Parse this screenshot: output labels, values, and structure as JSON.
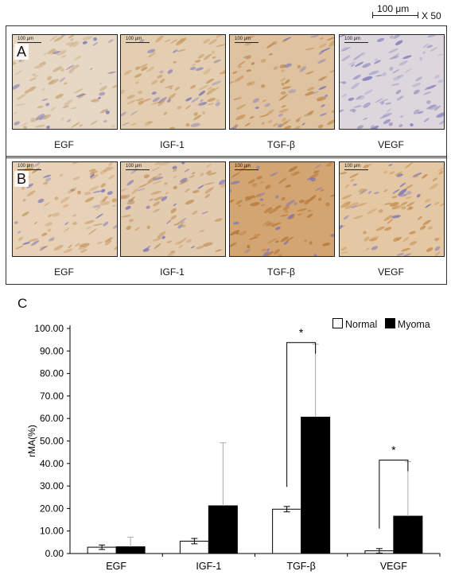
{
  "scale_bar": {
    "label": "100 μm",
    "magnification": "X 50"
  },
  "tile_scale_label": "100 μm",
  "panels": [
    {
      "letter": "A",
      "tiles": [
        {
          "label": "EGF",
          "stain": "#caa87e",
          "base": "#e6d8c4"
        },
        {
          "label": "IGF-1",
          "stain": "#c79a62",
          "base": "#e4ceb2"
        },
        {
          "label": "TGF-β",
          "stain": "#bf8748",
          "base": "#dfc2a0"
        },
        {
          "label": "VEGF",
          "stain": "#9a97c2",
          "base": "#ddd6dd"
        }
      ]
    },
    {
      "letter": "B",
      "tiles": [
        {
          "label": "EGF",
          "stain": "#c99863",
          "base": "#e7d2b8"
        },
        {
          "label": "IGF-1",
          "stain": "#c49560",
          "base": "#e2cbae"
        },
        {
          "label": "TGF-β",
          "stain": "#b8773a",
          "base": "#d2a572"
        },
        {
          "label": "VEGF",
          "stain": "#c78f53",
          "base": "#e4c8a4"
        }
      ]
    }
  ],
  "chart_letter": "C",
  "legend": [
    {
      "label": "Normal",
      "color": "#ffffff"
    },
    {
      "label": "Myoma",
      "color": "#000000"
    }
  ],
  "chart_data": {
    "type": "bar",
    "categories": [
      "EGF",
      "IGF-1",
      "TGF-β",
      "VEGF"
    ],
    "series": [
      {
        "name": "Normal",
        "values": [
          2.8,
          5.5,
          19.7,
          1.2
        ],
        "err_low": [
          1.0,
          1.2,
          1.2,
          1.0
        ],
        "err_high": [
          1.0,
          1.2,
          1.2,
          1.0
        ]
      },
      {
        "name": "Myoma",
        "values": [
          3.0,
          21.2,
          60.6,
          16.6
        ],
        "err_low": [
          1.0,
          0.8,
          0.8,
          0.8
        ],
        "err_high": [
          4.3,
          28.0,
          32.4,
          24.2
        ]
      }
    ],
    "ylabel": "rMA(%)",
    "ylim": [
      0,
      100
    ],
    "yticks": [
      "0.00",
      "10.00",
      "20.00",
      "30.00",
      "40.00",
      "50.00",
      "60.00",
      "70.00",
      "80.00",
      "90.00",
      "100.00"
    ],
    "significance": [
      {
        "category": "TGF-β",
        "label": "*"
      },
      {
        "category": "VEGF",
        "label": "*"
      }
    ],
    "legend_position": "top-right"
  }
}
